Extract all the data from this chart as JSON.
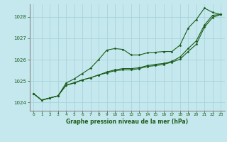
{
  "title": "Graphe pression niveau de la mer (hPa)",
  "background_color": "#c5e8ee",
  "grid_color": "#a8d4da",
  "line_color": "#1a5c1a",
  "xlim": [
    -0.5,
    23.5
  ],
  "ylim": [
    1023.6,
    1028.6
  ],
  "yticks": [
    1024,
    1025,
    1026,
    1027,
    1028
  ],
  "xticks": [
    0,
    1,
    2,
    3,
    4,
    5,
    6,
    7,
    8,
    9,
    10,
    11,
    12,
    13,
    14,
    15,
    16,
    17,
    18,
    19,
    20,
    21,
    22,
    23
  ],
  "series": [
    [
      1024.4,
      1024.1,
      1024.2,
      1024.3,
      1024.9,
      1025.1,
      1025.35,
      1025.6,
      1026.0,
      1026.45,
      1026.52,
      1026.48,
      1026.22,
      1026.22,
      1026.32,
      1026.35,
      1026.38,
      1026.38,
      1026.68,
      1027.48,
      1027.88,
      1028.42,
      1028.22,
      1028.12
    ],
    [
      1024.4,
      1024.1,
      1024.2,
      1024.3,
      1024.8,
      1024.9,
      1025.05,
      1025.15,
      1025.28,
      1025.42,
      1025.52,
      1025.58,
      1025.58,
      1025.62,
      1025.72,
      1025.78,
      1025.82,
      1025.92,
      1026.12,
      1026.52,
      1026.88,
      1027.62,
      1028.08,
      1028.12
    ],
    [
      1024.4,
      1024.1,
      1024.2,
      1024.3,
      1024.8,
      1024.92,
      1025.05,
      1025.15,
      1025.28,
      1025.38,
      1025.48,
      1025.52,
      1025.52,
      1025.58,
      1025.68,
      1025.72,
      1025.78,
      1025.88,
      1026.02,
      1026.38,
      1026.72,
      1027.52,
      1027.98,
      1028.12
    ]
  ]
}
